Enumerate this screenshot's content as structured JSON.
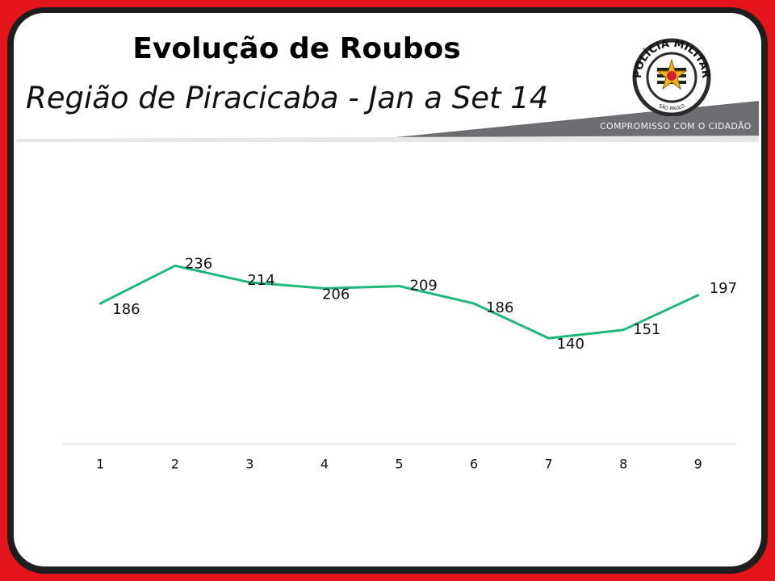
{
  "slide": {
    "title": "Evolução de Roubos",
    "subtitle": "Região de Piracicaba - Jan a Set 14",
    "tagline": "COMPROMISSO COM O CIDADÃO",
    "frame_color": "#e3151a",
    "accent_gray": "#6d6e71"
  },
  "logo": {
    "top_text": "POLÍCIA MILITAR",
    "bottom_text": "SÃO PAULO"
  },
  "chart_data": {
    "type": "line",
    "categories": [
      "1",
      "2",
      "3",
      "4",
      "5",
      "6",
      "7",
      "8",
      "9"
    ],
    "series": [
      {
        "values": [
          186,
          236,
          214,
          206,
          209,
          186,
          140,
          151,
          197
        ],
        "color": "#1db87a"
      }
    ],
    "ylim": [
      0,
      400
    ],
    "grid": false,
    "legend": "none"
  }
}
